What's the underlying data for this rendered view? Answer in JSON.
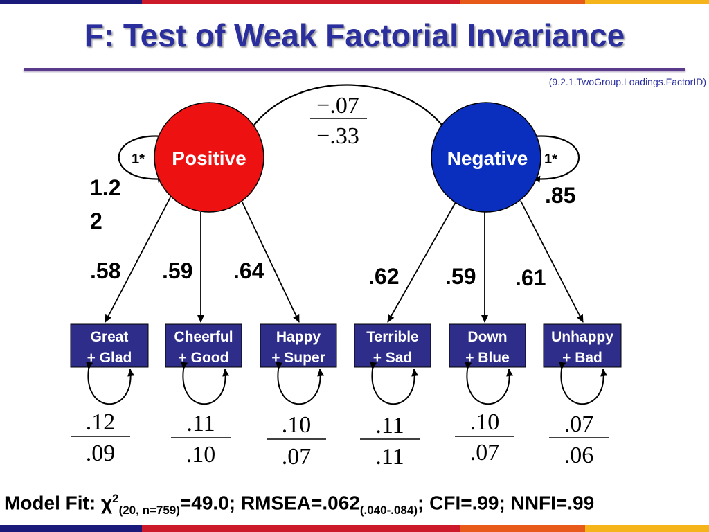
{
  "title": "F: Test of Weak Factorial Invariance",
  "source": "(9.2.1.TwoGroup.Loadings.FactorID)",
  "latents": {
    "positive": {
      "label": "Positive",
      "variance": "1*",
      "loading_top": "1.2",
      "loading_bot": "2"
    },
    "negative": {
      "label": "Negative",
      "variance": "1*",
      "variance2": ".85"
    }
  },
  "covariance": {
    "top": "−.07",
    "bottom": "−.33"
  },
  "loadings": [
    ".58",
    ".59",
    ".64",
    ".62",
    ".59",
    ".61"
  ],
  "indicators": [
    {
      "line1": "Great",
      "line2": "+ Glad",
      "res_top": ".12",
      "res_bot": ".09"
    },
    {
      "line1": "Cheerful",
      "line2": "+ Good",
      "res_top": ".11",
      "res_bot": ".10"
    },
    {
      "line1": "Happy",
      "line2": "+ Super",
      "res_top": ".10",
      "res_bot": ".07"
    },
    {
      "line1": "Terrible",
      "line2": "+ Sad",
      "res_top": ".11",
      "res_bot": ".11"
    },
    {
      "line1": "Down",
      "line2": "+ Blue",
      "res_top": ".10",
      "res_bot": ".07"
    },
    {
      "line1": "Unhappy",
      "line2": "+ Bad",
      "res_top": ".07",
      "res_bot": ".06"
    }
  ],
  "model_fit": {
    "prefix": "Model Fit: χ",
    "chi_sup": "2",
    "chi_sub": "(20, n=759)",
    "chi_val": "=49.0; RMSEA=.062",
    "rmsea_sub": "(.040-.084)",
    "rest": "; CFI=.99; NNFI=.99"
  },
  "colors": {
    "positive": "#ee1111",
    "negative": "#0a2fbf",
    "indicator_box": "#2e2e8a",
    "title": "#2b2f9e"
  }
}
